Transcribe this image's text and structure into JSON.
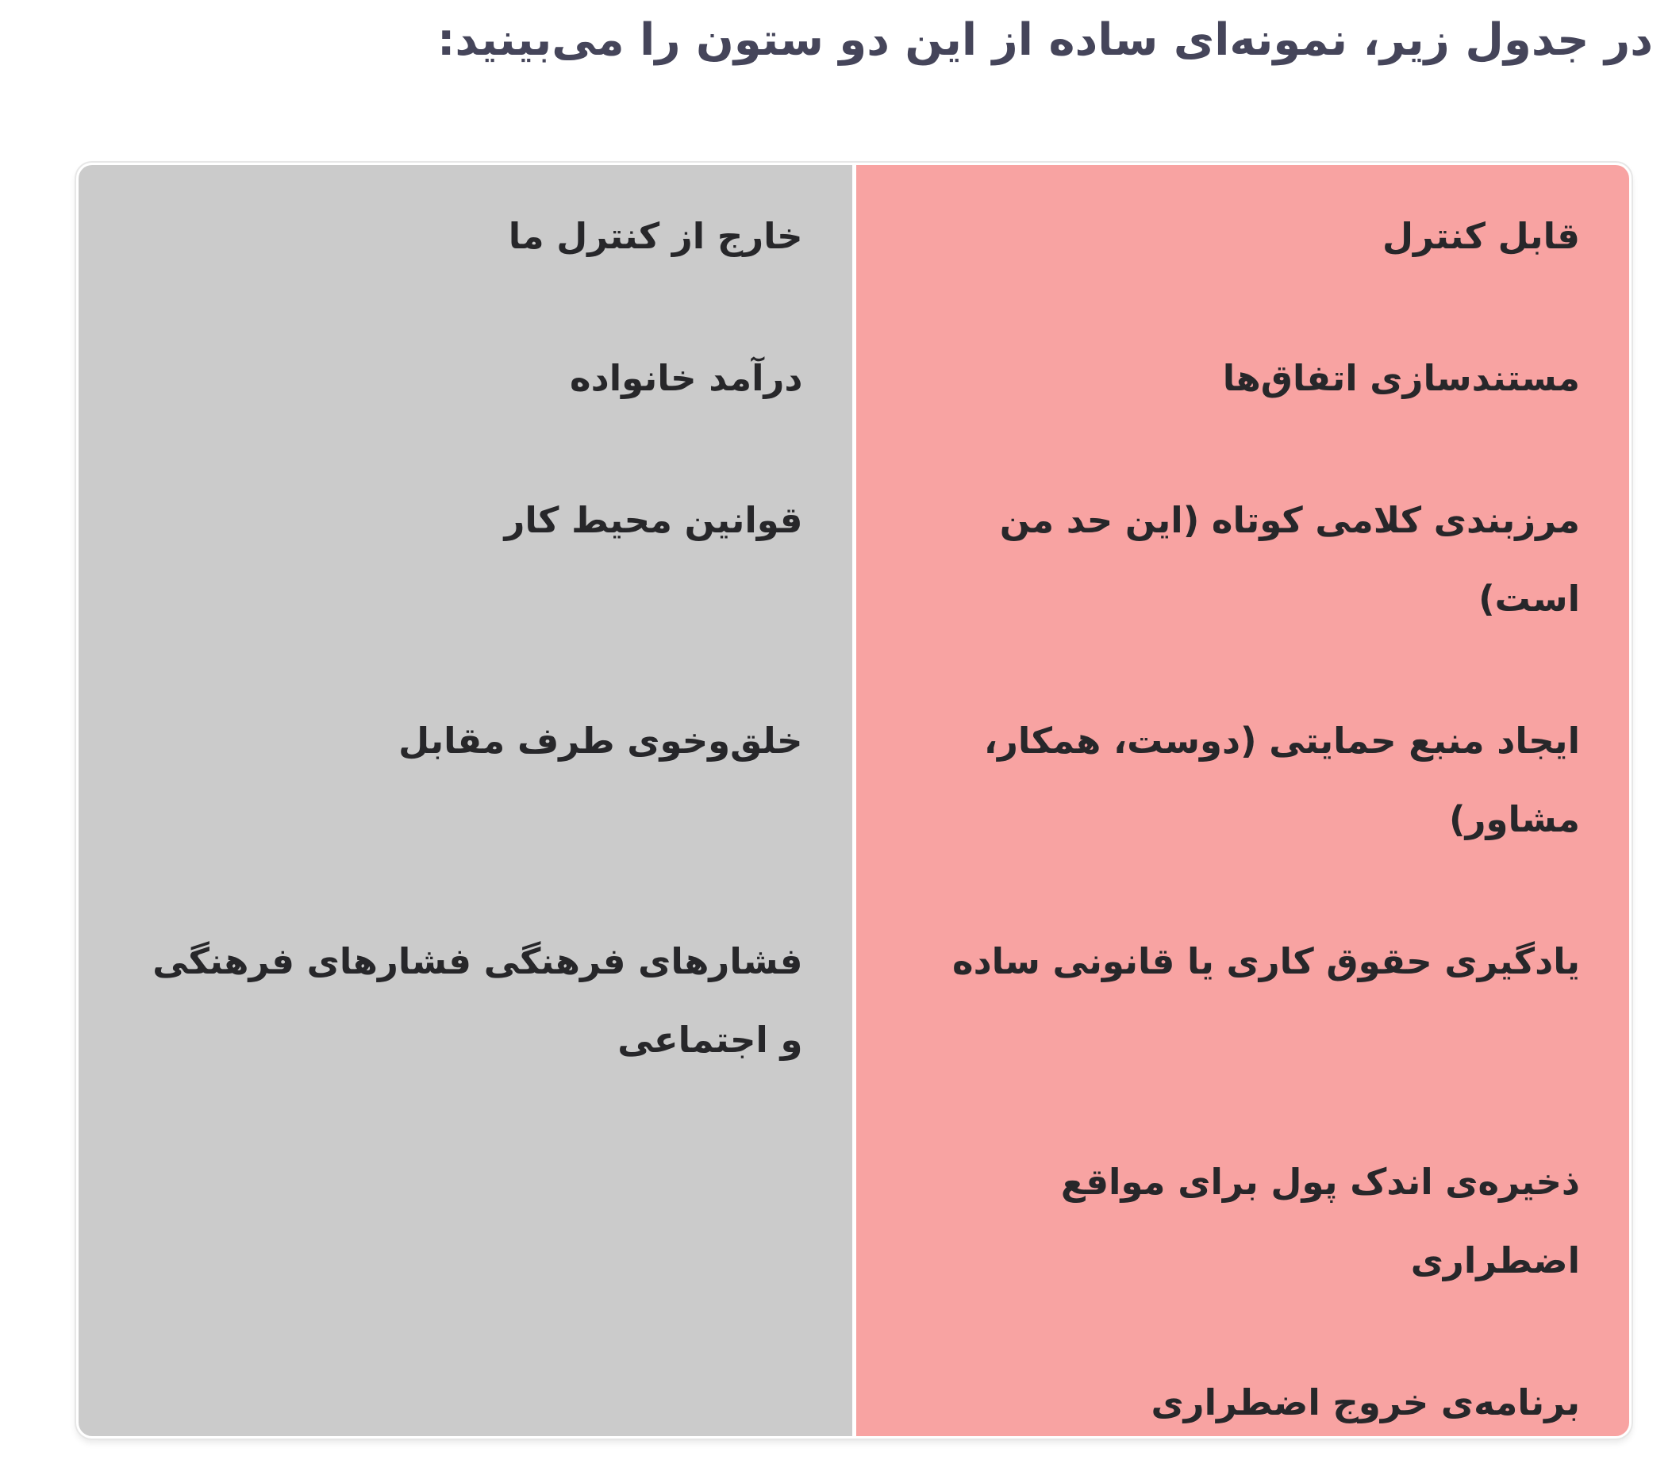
{
  "page": {
    "title": "در جدول زیر، نمونه‌ای ساده از این دو ستون را می‌بینید:"
  },
  "table": {
    "column_order": [
      "controllable",
      "uncontrollable"
    ],
    "rows": [
      {
        "controllable": "قابل کنترل",
        "uncontrollable": "خارج از کنترل ما"
      },
      {
        "controllable": "مستندسازی اتفاق‌ها",
        "uncontrollable": "درآمد خانواده"
      },
      {
        "controllable": "مرزبندی کلامی کوتاه (این حد من است)",
        "uncontrollable": "قوانین محیط کار"
      },
      {
        "controllable": "ایجاد منبع حمایتی (دوست، همکار، مشاور)",
        "uncontrollable": "خلق‌وخوی طرف مقابل"
      },
      {
        "controllable": "یادگیری حقوق کاری یا قانونی ساده",
        "uncontrollable": "فشارهای فرهنگی فشارهای فرهنگی و اجتماعی"
      },
      {
        "controllable": "ذخیره‌ی اندک پول برای مواقع اضطراری",
        "uncontrollable": ""
      },
      {
        "controllable": "برنامه‌ی خروج اضطراری",
        "uncontrollable": ""
      }
    ]
  },
  "colors": {
    "page_bg": "#ffffff",
    "controllable_bg": "#f8a3a2",
    "uncontrollable_bg": "#cbcbcb",
    "divider": "#ffffff",
    "title_color": "#45455a",
    "text_color": "#27272a"
  }
}
